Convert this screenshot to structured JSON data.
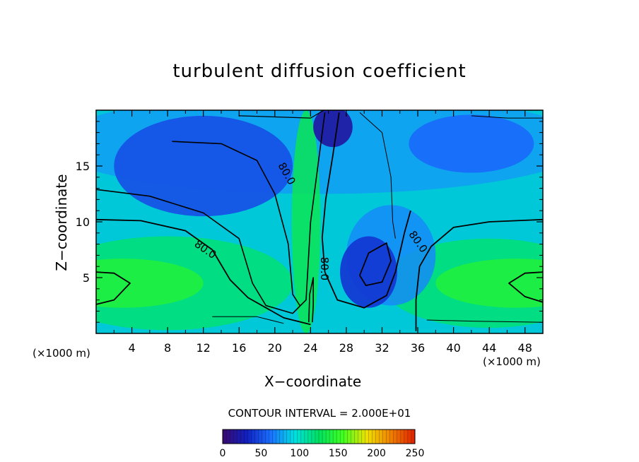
{
  "chart_data": {
    "type": "heatmap",
    "title": "turbulent diffusion coefficient",
    "xlabel": "X−coordinate",
    "ylabel": "Z−coordinate",
    "x_unit": "(×1000 m)",
    "y_unit": "(×1000 m)",
    "x_ticks": [
      4,
      8,
      12,
      16,
      20,
      24,
      28,
      32,
      36,
      40,
      44,
      48
    ],
    "y_ticks": [
      5,
      10,
      15
    ],
    "xlim": [
      0,
      50
    ],
    "ylim": [
      0,
      20
    ],
    "contour_interval_text": "CONTOUR INTERVAL = 2.000E+01",
    "contour_labels": [
      {
        "text": "80.0",
        "x": 12.2,
        "z": 7.5
      },
      {
        "text": "80.0",
        "x": 21.3,
        "z": 14.3
      },
      {
        "text": "80.0",
        "x": 25.5,
        "z": 5.8
      },
      {
        "text": "80.0",
        "x": 36.0,
        "z": 8.2
      }
    ],
    "colorbar": {
      "min": 0,
      "max": 250,
      "tick_labels": [
        "0",
        "50",
        "100",
        "150",
        "200",
        "250"
      ],
      "colormap": [
        "#3a0a6e",
        "#1020c0",
        "#1a70ff",
        "#00e0e0",
        "#00e060",
        "#40ff20",
        "#f0e000",
        "#f08000",
        "#e02000"
      ]
    },
    "features": [
      {
        "description": "field value",
        "x": 3,
        "z": 4.5,
        "value": 140
      },
      {
        "description": "field value",
        "x": 47,
        "z": 4.5,
        "value": 140
      },
      {
        "description": "field value",
        "x": 12,
        "z": 15,
        "value": 50
      },
      {
        "description": "field value",
        "x": 30.5,
        "z": 5.5,
        "value": 40
      },
      {
        "description": "field value",
        "x": 26.5,
        "z": 18.5,
        "value": 20
      },
      {
        "description": "field value",
        "x": 42,
        "z": 17,
        "value": 60
      }
    ]
  }
}
